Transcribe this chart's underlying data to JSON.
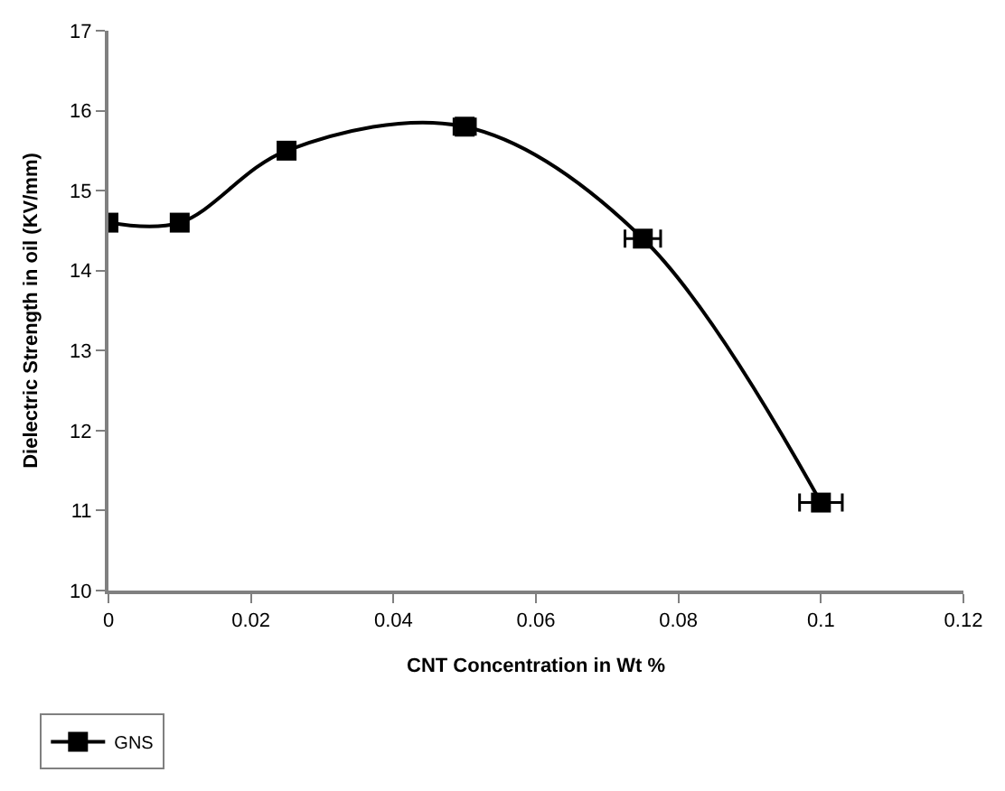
{
  "chart_data": {
    "type": "line",
    "xlabel": "CNT Concentration in Wt %",
    "ylabel": "Dielectric Strength in oil (KV/mm)",
    "x": [
      0,
      0.01,
      0.025,
      0.05,
      0.075,
      0.1
    ],
    "series": [
      {
        "name": "GNS",
        "color": "#000000",
        "values": [
          14.6,
          14.6,
          15.5,
          15.8,
          14.4,
          11.1
        ],
        "xerrors": [
          null,
          null,
          null,
          0.0015,
          0.0025,
          0.003
        ]
      }
    ],
    "xlim": [
      0,
      0.12
    ],
    "xticks": [
      0,
      0.02,
      0.04,
      0.06,
      0.08,
      0.1,
      0.12
    ],
    "ylim": [
      10,
      17
    ],
    "yticks": [
      10,
      11,
      12,
      13,
      14,
      15,
      16,
      17
    ],
    "legend": "bottom left",
    "marker": "square",
    "line_style": "solid"
  }
}
